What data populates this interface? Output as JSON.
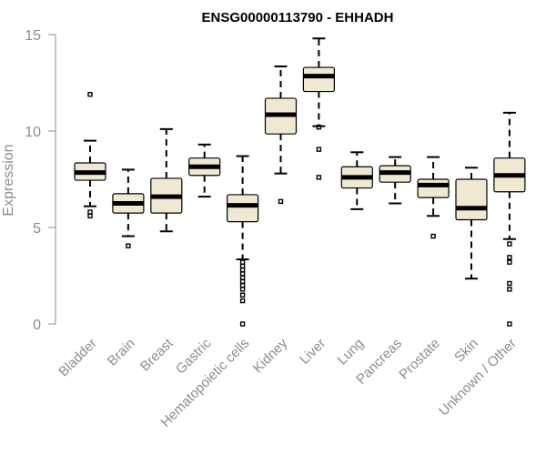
{
  "chart_data": {
    "type": "box",
    "title": "ENSG00000113790 - EHHADH",
    "xlabel": "",
    "ylabel": "Expression",
    "ylim": [
      0,
      15
    ],
    "yticks": [
      0,
      5,
      10,
      15
    ],
    "box_color": "#efe9d3",
    "axis_color": "#8c8c8c",
    "categories": [
      "Bladder",
      "Brain",
      "Breast",
      "Gastric",
      "Hematopoietic cells",
      "Kidney",
      "Liver",
      "Lung",
      "Pancreas",
      "Prostate",
      "Skin",
      "Unknown / Other"
    ],
    "boxes": [
      {
        "category": "Bladder",
        "whisker_low": 6.1,
        "q1": 7.45,
        "median": 7.85,
        "q3": 8.35,
        "whisker_high": 9.5,
        "outliers": [
          11.9,
          5.8,
          5.6
        ]
      },
      {
        "category": "Brain",
        "whisker_low": 4.55,
        "q1": 5.75,
        "median": 6.25,
        "q3": 6.75,
        "whisker_high": 8.0,
        "outliers": [
          4.05
        ]
      },
      {
        "category": "Breast",
        "whisker_low": 4.8,
        "q1": 5.75,
        "median": 6.6,
        "q3": 7.55,
        "whisker_high": 10.1,
        "outliers": []
      },
      {
        "category": "Gastric",
        "whisker_low": 6.6,
        "q1": 7.7,
        "median": 8.15,
        "q3": 8.6,
        "whisker_high": 9.3,
        "outliers": []
      },
      {
        "category": "Hematopoietic cells",
        "whisker_low": 3.35,
        "q1": 5.3,
        "median": 6.15,
        "q3": 6.7,
        "whisker_high": 8.7,
        "outliers": [
          3.2,
          3.0,
          2.8,
          2.6,
          2.4,
          2.2,
          2.0,
          1.8,
          1.5,
          1.2,
          0.0
        ]
      },
      {
        "category": "Kidney",
        "whisker_low": 7.8,
        "q1": 9.85,
        "median": 10.85,
        "q3": 11.7,
        "whisker_high": 13.35,
        "outliers": [
          6.35
        ]
      },
      {
        "category": "Liver",
        "whisker_low": 10.25,
        "q1": 12.05,
        "median": 12.85,
        "q3": 13.3,
        "whisker_high": 14.8,
        "outliers": [
          10.2,
          9.05,
          7.6
        ]
      },
      {
        "category": "Lung",
        "whisker_low": 5.95,
        "q1": 7.05,
        "median": 7.6,
        "q3": 8.15,
        "whisker_high": 8.9,
        "outliers": []
      },
      {
        "category": "Pancreas",
        "whisker_low": 6.25,
        "q1": 7.35,
        "median": 7.85,
        "q3": 8.2,
        "whisker_high": 8.65,
        "outliers": []
      },
      {
        "category": "Prostate",
        "whisker_low": 5.6,
        "q1": 6.55,
        "median": 7.2,
        "q3": 7.5,
        "whisker_high": 8.65,
        "outliers": [
          4.55
        ]
      },
      {
        "category": "Skin",
        "whisker_low": 2.35,
        "q1": 5.4,
        "median": 6.0,
        "q3": 7.5,
        "whisker_high": 8.1,
        "outliers": []
      },
      {
        "category": "Unknown / Other",
        "whisker_low": 4.4,
        "q1": 6.85,
        "median": 7.7,
        "q3": 8.6,
        "whisker_high": 10.95,
        "outliers": [
          4.15,
          3.45,
          3.2,
          2.1,
          1.8,
          0.0
        ]
      }
    ]
  }
}
